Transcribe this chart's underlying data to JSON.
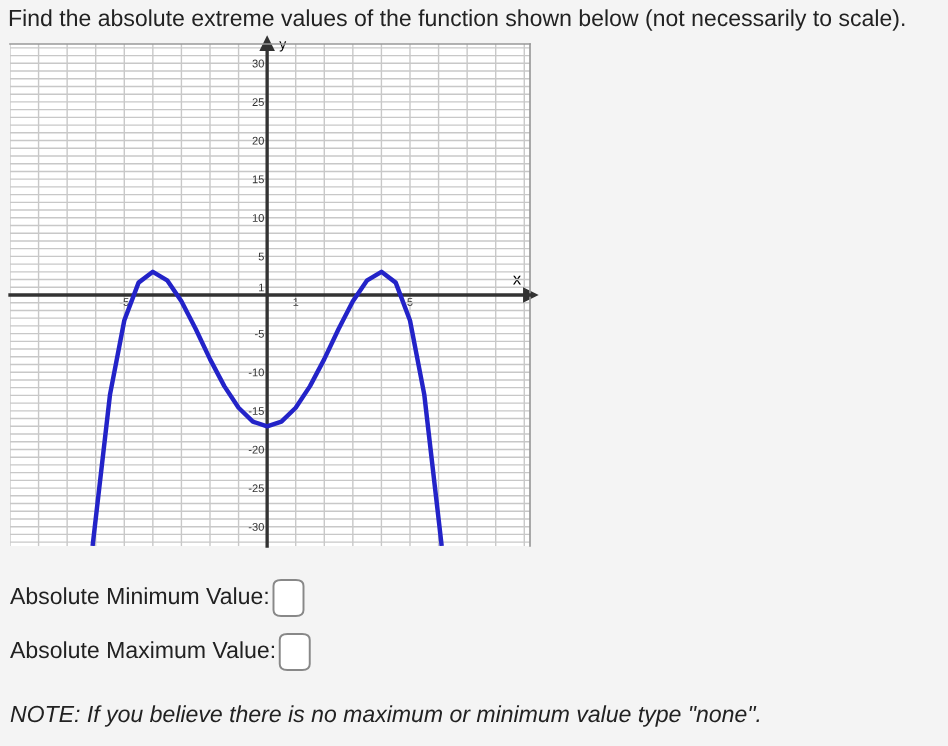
{
  "chart_data": {
    "type": "line",
    "title": "Find the absolute extreme values of the function shown below (not necessarily to scale).",
    "xlabel": "x",
    "ylabel": "y",
    "series": [
      {
        "color": "#2323c8",
        "x": [
          -6.1,
          -5.5,
          -5,
          -4.5,
          -4,
          -3.5,
          -3,
          -2.5,
          -2,
          -1.5,
          -1,
          -0.5,
          0,
          0.5,
          1,
          1.5,
          2,
          2.5,
          3,
          3.5,
          4,
          4.5,
          5,
          5.5,
          6.1
        ],
        "values": [
          -32.2,
          -12.9,
          -3.3,
          1.6,
          3,
          1.9,
          -0.8,
          -4.4,
          -8.3,
          -11.8,
          -14.6,
          -16.4,
          -17,
          -16.4,
          -14.6,
          -11.8,
          -8.3,
          -4.4,
          -0.8,
          1.9,
          3,
          1.6,
          -3.3,
          -12.9,
          -32.2
        ]
      }
    ],
    "xlim": [
      -9,
      9.2
    ],
    "ylim": [
      -32.5,
      32.5
    ],
    "xticks": [
      {
        "value": -9,
        "label": null
      },
      {
        "value": -8,
        "label": null
      },
      {
        "value": -7,
        "label": null
      },
      {
        "value": -6,
        "label": null
      },
      -5,
      {
        "value": -4,
        "label": null
      },
      {
        "value": -3,
        "label": null
      },
      {
        "value": -2,
        "label": null
      },
      {
        "value": -1,
        "label": null
      },
      1,
      {
        "value": 2,
        "label": null
      },
      {
        "value": 3,
        "label": null
      },
      {
        "value": 4,
        "label": null
      },
      5,
      {
        "value": 6,
        "label": null
      },
      {
        "value": 7,
        "label": null
      },
      {
        "value": 8,
        "label": null
      },
      {
        "value": 9,
        "label": null
      }
    ],
    "yticks": [
      {
        "value": -32,
        "label": null
      },
      {
        "value": -31,
        "label": null
      },
      -30,
      {
        "value": -29,
        "label": null
      },
      {
        "value": -28,
        "label": null
      },
      {
        "value": -27,
        "label": null
      },
      {
        "value": -26,
        "label": null
      },
      -25,
      {
        "value": -24,
        "label": null
      },
      {
        "value": -23,
        "label": null
      },
      {
        "value": -22,
        "label": null
      },
      {
        "value": -21,
        "label": null
      },
      -20,
      {
        "value": -19,
        "label": null
      },
      {
        "value": -18,
        "label": null
      },
      {
        "value": -17,
        "label": null
      },
      {
        "value": -16,
        "label": null
      },
      -15,
      {
        "value": -14,
        "label": null
      },
      {
        "value": -13,
        "label": null
      },
      {
        "value": -12,
        "label": null
      },
      {
        "value": -11,
        "label": null
      },
      -10,
      {
        "value": -9,
        "label": null
      },
      {
        "value": -8,
        "label": null
      },
      {
        "value": -7,
        "label": null
      },
      {
        "value": -6,
        "label": null
      },
      -5,
      {
        "value": -4,
        "label": null
      },
      {
        "value": -3,
        "label": null
      },
      {
        "value": -2,
        "label": null
      },
      {
        "value": -1,
        "label": null
      },
      1,
      {
        "value": 2,
        "label": null
      },
      {
        "value": 3,
        "label": null
      },
      {
        "value": 4,
        "label": null
      },
      5,
      {
        "value": 6,
        "label": null
      },
      {
        "value": 7,
        "label": null
      },
      {
        "value": 8,
        "label": null
      },
      {
        "value": 9,
        "label": null
      },
      10,
      {
        "value": 11,
        "label": null
      },
      {
        "value": 12,
        "label": null
      },
      {
        "value": 13,
        "label": null
      },
      {
        "value": 14,
        "label": null
      },
      15,
      {
        "value": 16,
        "label": null
      },
      {
        "value": 17,
        "label": null
      },
      {
        "value": 18,
        "label": null
      },
      {
        "value": 19,
        "label": null
      },
      20,
      {
        "value": 21,
        "label": null
      },
      {
        "value": 22,
        "label": null
      },
      {
        "value": 23,
        "label": null
      },
      {
        "value": 24,
        "label": null
      },
      25,
      {
        "value": 26,
        "label": null
      },
      {
        "value": 27,
        "label": null
      },
      {
        "value": 28,
        "label": null
      },
      {
        "value": 29,
        "label": null
      },
      30,
      {
        "value": 31,
        "label": null
      },
      {
        "value": 32,
        "label": null
      }
    ],
    "grid": true,
    "marker": "none",
    "line_style": "solid",
    "annotations": [
      "Absolute Minimum Value:",
      "Absolute Maximum Value:",
      "NOTE: If you believe there is no maximum or minimum value type \"none\"."
    ]
  }
}
